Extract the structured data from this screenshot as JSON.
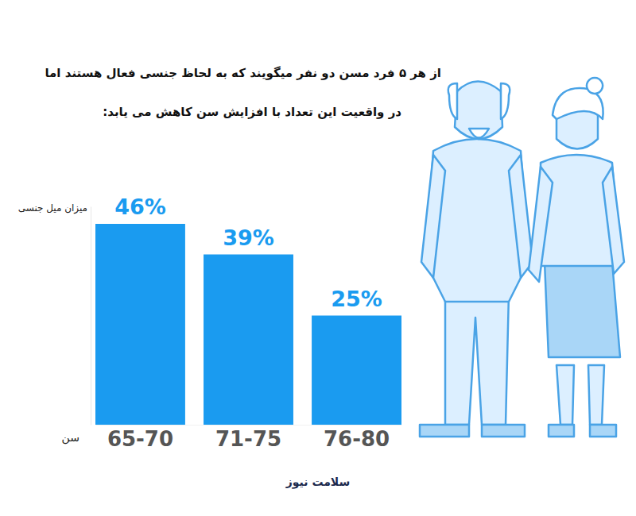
{
  "chart_data": {
    "type": "bar",
    "title": "از هر ۵ فرد مسن دو نفر  میگویند که به لحاظ جنسی فعال هستند اما",
    "subtitle": "در واقعیت این تعداد با افزایش سن کاهش می یابد:",
    "y_label": "میزان میل جنسی",
    "x_label": "سن",
    "categories": [
      "65-70",
      "71-75",
      "76-80"
    ],
    "values": [
      46,
      39,
      25
    ],
    "value_labels": [
      "46%",
      "39%",
      "25%"
    ],
    "data_labels": true,
    "color": "#1a9bf0",
    "ylim": [
      0,
      50
    ],
    "yticks": [],
    "tick_labels": "x",
    "grid": false,
    "source": "سلامت نیوز"
  }
}
